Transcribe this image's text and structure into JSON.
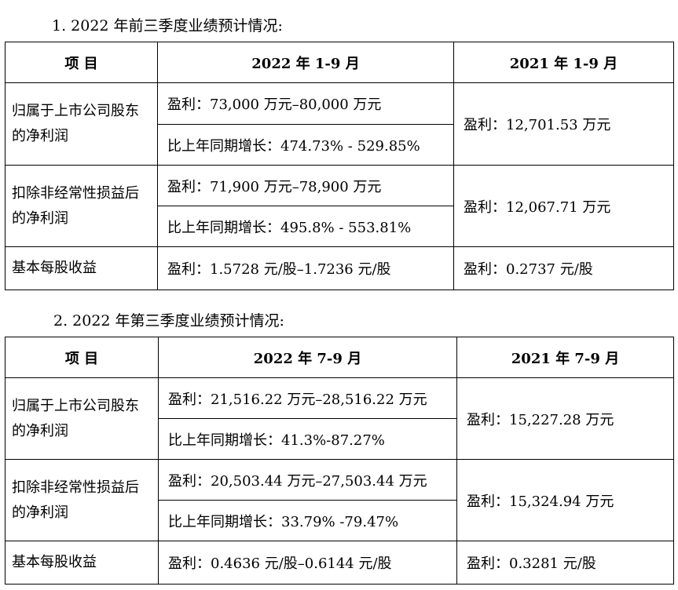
{
  "section1": {
    "heading": "1.  2022 年前三季度业绩预计情况:",
    "headers": [
      "项    目",
      "2022 年 1-9 月",
      "2021 年 1-9 月"
    ],
    "rows": {
      "net_profit": {
        "label": "归属于上市公司股东的净利润",
        "profit": "盈利：73,000 万元–80,000 万元",
        "growth": "比上年同期增长：474.73% - 529.85%",
        "prev": "盈利：12,701.53 万元"
      },
      "net_profit_excl": {
        "label": "扣除非经常性损益后的净利润",
        "profit": "盈利：71,900 万元–78,900 万元",
        "growth": "比上年同期增长：495.8% - 553.81%",
        "prev": "盈利：12,067.71 万元"
      },
      "eps": {
        "label": "基本每股收益",
        "profit": "盈利：1.5728 元/股–1.7236 元/股",
        "prev": "盈利：0.2737 元/股"
      }
    }
  },
  "section2": {
    "heading": "2. 2022 年第三季度业绩预计情况:",
    "headers": [
      "项    目",
      "2022 年 7-9 月",
      "2021 年 7-9 月"
    ],
    "rows": {
      "net_profit": {
        "label": "归属于上市公司股东的净利润",
        "profit": "盈利：21,516.22 万元–28,516.22 万元",
        "growth": "比上年同期增长：41.3%-87.27%",
        "prev": "盈利：15,227.28 万元"
      },
      "net_profit_excl": {
        "label": "扣除非经常性损益后的净利润",
        "profit": "盈利：20,503.44 万元–27,503.44 万元",
        "growth": "比上年同期增长：33.79% -79.47%",
        "prev": "盈利：15,324.94 万元"
      },
      "eps": {
        "label": "基本每股收益",
        "profit": "盈利：0.4636 元/股–0.6144 元/股",
        "prev": "盈利：0.3281 元/股"
      }
    }
  }
}
